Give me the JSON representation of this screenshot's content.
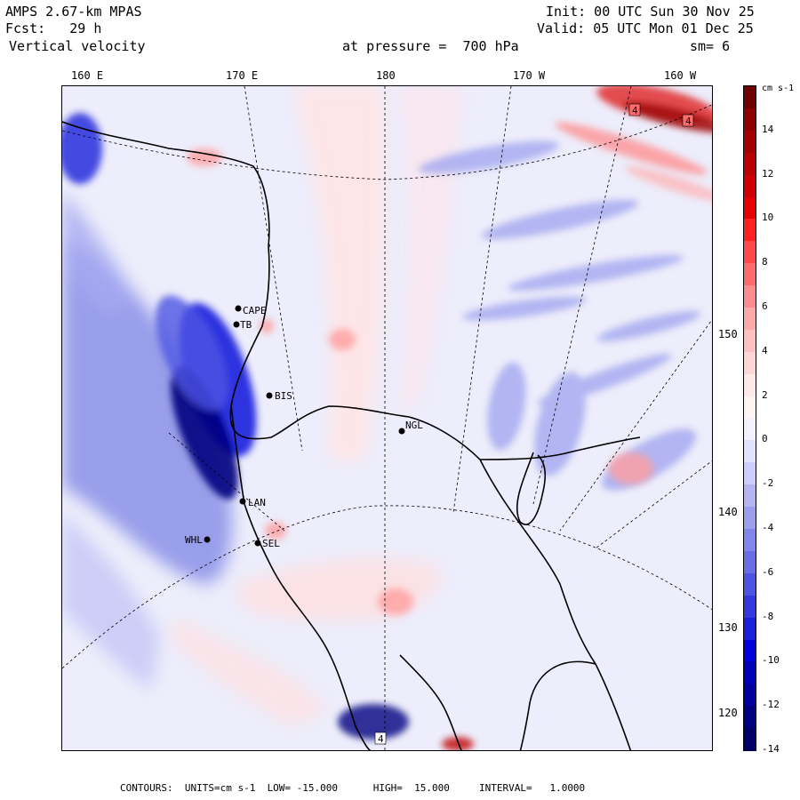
{
  "header": {
    "model": "AMPS 2.67-km MPAS",
    "fcst": "Fcst:   29 h",
    "variable": "Vertical velocity",
    "init": "Init: 00 UTC Sun 30 Nov 25",
    "valid": "Valid: 05 UTC Mon 01 Dec 25",
    "pressure": "at pressure =  700 hPa",
    "smoothing": "sm= 6"
  },
  "longitude_labels": [
    "160 E",
    "170 E",
    "180",
    "170 W",
    "160 W"
  ],
  "latitude_labels": [
    "150 W",
    "140 W",
    "130 W",
    "120 W"
  ],
  "stations": [
    {
      "id": "CAPE",
      "label": "CAPE"
    },
    {
      "id": "TB",
      "label": "TB"
    },
    {
      "id": "BIS",
      "label": "BIS"
    },
    {
      "id": "NGL",
      "label": "NGL"
    },
    {
      "id": "LAN",
      "label": "LAN"
    },
    {
      "id": "WHL",
      "label": "WHL"
    },
    {
      "id": "SEL",
      "label": "SEL"
    }
  ],
  "map_marks": [
    "4",
    "4",
    "4"
  ],
  "colorbar": {
    "units_label": "cm s-1",
    "ticks": [
      "14",
      "12",
      "10",
      "8",
      "6",
      "4",
      "2",
      "0",
      "-2",
      "-4",
      "-6",
      "-8",
      "-10",
      "-12",
      "-14"
    ],
    "colors_top_to_bottom": [
      "#6e0000",
      "#8b0000",
      "#a30000",
      "#bb0000",
      "#d10000",
      "#e60000",
      "#ff2020",
      "#ff4848",
      "#ff6a6a",
      "#ff8c8c",
      "#ffa8a8",
      "#ffc0c0",
      "#ffd6d6",
      "#ffe8e8",
      "#fff4f4",
      "#f2f2ff",
      "#e2e2ff",
      "#cccdfa",
      "#b4b6f4",
      "#9c9eee",
      "#8286ea",
      "#686ee6",
      "#4e54e2",
      "#3438de",
      "#1a1fdb",
      "#0000d8",
      "#0000b8",
      "#00009c",
      "#000080",
      "#000066"
    ]
  },
  "footer": {
    "text": "CONTOURS:  UNITS=cm s-1  LOW= -15.000      HIGH=  15.000     INTERVAL=   1.0000"
  }
}
